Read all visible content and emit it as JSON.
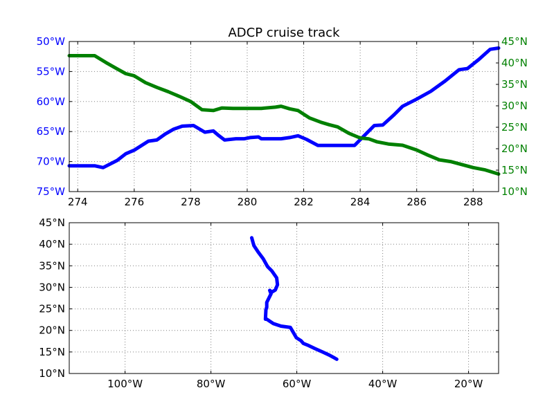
{
  "figure": {
    "title": "ADCP cruise track",
    "colors": {
      "lon_series": "#0000ff",
      "lat_series": "#008000",
      "axis": "#000000",
      "grid": "#7f7f7f"
    }
  },
  "chart_data": [
    {
      "type": "line",
      "title": "ADCP cruise track",
      "xlabel": "",
      "ylabel": "",
      "grid": true,
      "xlim": [
        273.7,
        288.9
      ],
      "x_ticks": [
        274,
        276,
        278,
        280,
        282,
        284,
        286,
        288
      ],
      "x_tick_labels": [
        "274",
        "276",
        "278",
        "280",
        "282",
        "284",
        "286",
        "288"
      ],
      "left_axis": {
        "ylim": [
          -75,
          -50
        ],
        "ticks": [
          -50,
          -55,
          -60,
          -65,
          -70,
          -75
        ],
        "tick_labels": [
          "50°W",
          "55°W",
          "60°W",
          "65°W",
          "70°W",
          "75°W"
        ],
        "color": "#0000ff"
      },
      "right_axis": {
        "ylim": [
          10,
          45
        ],
        "ticks": [
          45,
          40,
          35,
          30,
          25,
          20,
          15,
          10
        ],
        "tick_labels": [
          "45°N",
          "40°N",
          "35°N",
          "30°N",
          "25°N",
          "20°N",
          "15°N",
          "10°N"
        ],
        "color": "#008000"
      },
      "series": [
        {
          "axis": "left",
          "color": "#0000ff",
          "x": [
            273.7,
            274.6,
            274.9,
            275.4,
            275.7,
            276.0,
            276.5,
            276.8,
            277.1,
            277.4,
            277.7,
            278.1,
            278.5,
            278.8,
            279.0,
            279.2,
            279.6,
            279.9,
            280.1,
            280.4,
            280.5,
            280.9,
            281.2,
            281.5,
            281.8,
            282.1,
            282.5,
            282.8,
            283.1,
            283.5,
            283.8,
            284.2,
            284.5,
            284.8,
            285.2,
            285.5,
            286.0,
            286.5,
            287.0,
            287.5,
            287.8,
            288.2,
            288.6,
            288.9
          ],
          "y": [
            -70.7,
            -70.7,
            -71.0,
            -69.8,
            -68.7,
            -68.1,
            -66.6,
            -66.4,
            -65.4,
            -64.6,
            -64.1,
            -64.0,
            -65.1,
            -64.9,
            -65.7,
            -66.4,
            -66.2,
            -66.2,
            -66.0,
            -65.9,
            -66.2,
            -66.2,
            -66.2,
            -66.0,
            -65.7,
            -66.3,
            -67.3,
            -67.3,
            -67.3,
            -67.3,
            -67.3,
            -65.4,
            -64.0,
            -63.9,
            -62.2,
            -60.8,
            -59.6,
            -58.3,
            -56.6,
            -54.7,
            -54.5,
            -53.0,
            -51.3,
            -51.1
          ]
        },
        {
          "axis": "right",
          "color": "#008000",
          "x": [
            273.7,
            274.6,
            275.0,
            275.4,
            275.7,
            276.0,
            276.4,
            276.8,
            277.2,
            277.6,
            278.0,
            278.4,
            278.8,
            279.1,
            279.5,
            280.0,
            280.5,
            281.0,
            281.2,
            281.5,
            281.8,
            282.2,
            282.6,
            282.9,
            283.2,
            283.6,
            284.0,
            284.3,
            284.6,
            285.0,
            285.5,
            286.0,
            286.4,
            286.8,
            287.2,
            287.6,
            288.0,
            288.4,
            288.9
          ],
          "y": [
            41.7,
            41.7,
            40.1,
            38.6,
            37.5,
            37.0,
            35.4,
            34.3,
            33.3,
            32.2,
            31.0,
            29.1,
            28.9,
            29.5,
            29.4,
            29.4,
            29.4,
            29.7,
            29.9,
            29.3,
            28.9,
            27.2,
            26.2,
            25.6,
            25.1,
            23.6,
            22.5,
            22.3,
            21.6,
            21.1,
            20.8,
            19.7,
            18.5,
            17.4,
            17.0,
            16.3,
            15.6,
            15.1,
            14.1
          ]
        }
      ]
    },
    {
      "type": "line",
      "title": "",
      "xlabel": "",
      "ylabel": "",
      "grid": true,
      "xlim": [
        -113,
        -13
      ],
      "ylim": [
        10,
        45
      ],
      "x_ticks": [
        -100,
        -80,
        -60,
        -40,
        -20
      ],
      "x_tick_labels": [
        "100°W",
        "80°W",
        "60°W",
        "40°W",
        "20°W"
      ],
      "y_ticks": [
        45,
        40,
        35,
        30,
        25,
        20,
        15,
        10
      ],
      "y_tick_labels": [
        "45°N",
        "40°N",
        "35°N",
        "30°N",
        "25°N",
        "20°N",
        "15°N",
        "10°N"
      ],
      "series": [
        {
          "color": "#0000ff",
          "x": [
            -70.5,
            -70.0,
            -69.0,
            -67.8,
            -66.8,
            -65.8,
            -64.7,
            -64.5,
            -65.0,
            -65.8,
            -66.3,
            -66.0,
            -66.4,
            -67.0,
            -67.0,
            -67.2,
            -67.3,
            -67.0,
            -65.5,
            -63.7,
            -61.5,
            -60.8,
            -60.1,
            -59.0,
            -58.5,
            -57.5,
            -55.8,
            -54.0,
            -52.5,
            -51.2,
            -50.7
          ],
          "y": [
            41.5,
            39.7,
            38.2,
            36.6,
            34.8,
            33.8,
            32.2,
            30.6,
            29.4,
            28.9,
            29.3,
            28.5,
            27.7,
            26.5,
            25.4,
            24.8,
            22.6,
            22.6,
            21.6,
            21.0,
            20.7,
            19.5,
            18.3,
            17.6,
            17.0,
            16.6,
            15.8,
            15.0,
            14.3,
            13.6,
            13.3
          ]
        }
      ]
    }
  ]
}
